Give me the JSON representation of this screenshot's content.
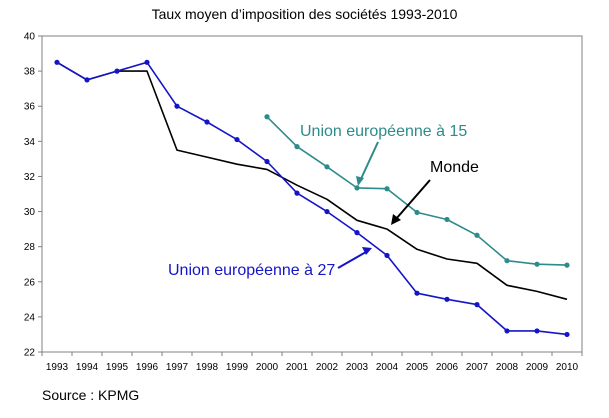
{
  "title": "Taux moyen d’imposition des sociétés 1993-2010",
  "source": "Source : KPMG",
  "chart_data": {
    "type": "line",
    "title": "Taux moyen d’imposition des sociétés 1993-2010",
    "xlabel": "",
    "ylabel": "",
    "x": [
      "1993",
      "1994",
      "1995",
      "1996",
      "1997",
      "1998",
      "1999",
      "2000",
      "2001",
      "2002",
      "2003",
      "2004",
      "2005",
      "2006",
      "2007",
      "2008",
      "2009",
      "2010"
    ],
    "ylim": [
      22,
      40
    ],
    "yticks": [
      22,
      24,
      26,
      28,
      30,
      32,
      34,
      36,
      38,
      40
    ],
    "grid": false,
    "series": [
      {
        "name": "Monde",
        "color": "#000000",
        "markers": false,
        "values": [
          38.5,
          37.5,
          38.0,
          38.0,
          33.5,
          33.1,
          32.7,
          32.4,
          31.5,
          30.7,
          29.5,
          29.0,
          27.85,
          27.3,
          27.05,
          25.8,
          25.45,
          25.0
        ]
      },
      {
        "name": "Union européenne à 15",
        "color": "#2E8B8B",
        "markers": true,
        "values": [
          null,
          null,
          null,
          null,
          null,
          null,
          null,
          35.4,
          33.7,
          32.55,
          31.35,
          31.3,
          29.95,
          29.55,
          28.65,
          27.2,
          27.0,
          26.95
        ]
      },
      {
        "name": "Union européenne à 27",
        "color": "#1515C8",
        "markers": true,
        "values": [
          38.5,
          37.5,
          38.0,
          38.5,
          36.0,
          35.1,
          34.1,
          32.85,
          31.05,
          30.0,
          28.8,
          27.5,
          25.35,
          25.0,
          24.7,
          23.2,
          23.2,
          23.0
        ]
      }
    ]
  }
}
